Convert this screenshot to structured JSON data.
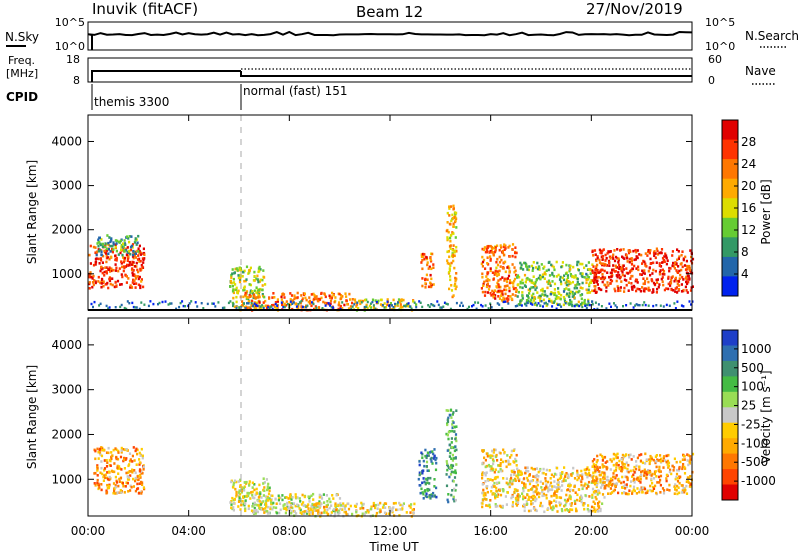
{
  "header": {
    "station": "Inuvik (fitACF)",
    "beam": "Beam 12",
    "date": "27/Nov/2019"
  },
  "nsky_panel": {
    "left_label": "N.Sky",
    "left_ticks": [
      "10^5",
      "10^0"
    ],
    "right_label": "N.Search",
    "right_ticks": [
      "10^5",
      "10^0"
    ]
  },
  "freq_panel": {
    "left_label_line1": "Freq.",
    "left_label_line2": "[MHz]",
    "left_ticks": [
      "18",
      "8"
    ],
    "right_label": "Nave",
    "right_ticks": [
      "60",
      "0"
    ]
  },
  "cpid_panel": {
    "label": "CPID",
    "segments": [
      {
        "name": "themis 3300",
        "start_hour": 0,
        "end_hour": 6
      },
      {
        "name": "normal (fast) 151",
        "start_hour": 6,
        "end_hour": 24
      }
    ]
  },
  "power_colorbar": {
    "label": "Power [dB]",
    "ticks": [
      "28",
      "24",
      "20",
      "16",
      "12",
      "8",
      "4"
    ],
    "colors": [
      "#e00000",
      "#ff3300",
      "#ff7700",
      "#ffaa00",
      "#dddd00",
      "#66cc33",
      "#339966",
      "#2266aa",
      "#0022ee"
    ]
  },
  "velocity_colorbar": {
    "label": "Velocity [m s⁻¹]",
    "ticks": [
      "1000",
      "500",
      "100",
      "25",
      "-25",
      "-100",
      "-500",
      "-1000"
    ],
    "colors": [
      "#1f3fc8",
      "#2f6fb0",
      "#3f9070",
      "#44bb44",
      "#99dd55",
      "#c8c8c8",
      "#ffcc00",
      "#ffaa00",
      "#ff7700",
      "#ff4400",
      "#e00000"
    ]
  },
  "x_axis": {
    "label": "Time UT",
    "ticks": [
      "00:00",
      "04:00",
      "08:00",
      "12:00",
      "16:00",
      "20:00",
      "00:00"
    ]
  },
  "chart_data": [
    {
      "type": "heatmap",
      "title": "Power",
      "xlabel": "Time UT",
      "ylabel": "Slant Range [km]",
      "y_ticks": [
        "1000",
        "2000",
        "3000",
        "4000"
      ],
      "xlim": [
        0,
        24
      ],
      "ylim": [
        180,
        4600
      ],
      "colorbar_range": [
        0,
        30
      ],
      "patches": [
        {
          "t0": 0.0,
          "t1": 2.2,
          "r0": 700,
          "r1": 1700,
          "value": 25
        },
        {
          "t0": 0.3,
          "t1": 2.0,
          "r0": 1450,
          "r1": 1900,
          "value": 9
        },
        {
          "t0": 5.6,
          "t1": 7.0,
          "r0": 250,
          "r1": 1200,
          "value": 14
        },
        {
          "t0": 6.0,
          "t1": 10.5,
          "r0": 200,
          "r1": 600,
          "value": 22
        },
        {
          "t0": 10.5,
          "t1": 13.0,
          "r0": 200,
          "r1": 450,
          "value": 16
        },
        {
          "t0": 13.2,
          "t1": 13.7,
          "r0": 700,
          "r1": 1500,
          "value": 22
        },
        {
          "t0": 14.2,
          "t1": 14.6,
          "r0": 500,
          "r1": 2600,
          "value": 18
        },
        {
          "t0": 15.6,
          "t1": 17.0,
          "r0": 400,
          "r1": 1700,
          "value": 22
        },
        {
          "t0": 17.0,
          "t1": 20.0,
          "r0": 300,
          "r1": 1300,
          "value": 12
        },
        {
          "t0": 20.0,
          "t1": 24.0,
          "r0": 600,
          "r1": 1600,
          "value": 26
        }
      ]
    },
    {
      "type": "heatmap",
      "title": "Velocity",
      "xlabel": "Time UT",
      "ylabel": "Slant Range [km]",
      "y_ticks": [
        "1000",
        "2000",
        "3000",
        "4000"
      ],
      "xlim": [
        0,
        24
      ],
      "ylim": [
        180,
        4600
      ],
      "colorbar_range": [
        -1000,
        1000
      ],
      "patches": [
        {
          "t0": 0.2,
          "t1": 2.2,
          "r0": 700,
          "r1": 1750,
          "value": -400
        },
        {
          "t0": 5.6,
          "t1": 7.2,
          "r0": 300,
          "r1": 1050,
          "value": 0
        },
        {
          "t0": 6.5,
          "t1": 10.0,
          "r0": 250,
          "r1": 700,
          "value": 30
        },
        {
          "t0": 8.0,
          "t1": 13.0,
          "r0": 200,
          "r1": 500,
          "value": -150
        },
        {
          "t0": 13.1,
          "t1": 13.8,
          "r0": 600,
          "r1": 1700,
          "value": 600
        },
        {
          "t0": 14.2,
          "t1": 14.6,
          "r0": 500,
          "r1": 2600,
          "value": 400
        },
        {
          "t0": 15.6,
          "t1": 17.0,
          "r0": 400,
          "r1": 1700,
          "value": -150
        },
        {
          "t0": 17.0,
          "t1": 20.5,
          "r0": 300,
          "r1": 1300,
          "value": -200
        },
        {
          "t0": 20.0,
          "t1": 24.0,
          "r0": 700,
          "r1": 1600,
          "value": -350
        }
      ]
    }
  ]
}
